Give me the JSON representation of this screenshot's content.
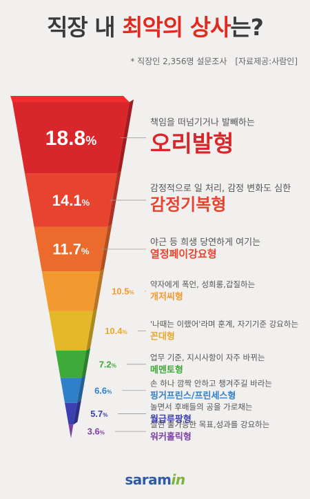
{
  "title": {
    "part1": "직장 내 ",
    "part2": "최악의 상사",
    "part3": "는?"
  },
  "subtitle": {
    "survey": "* 직장인 2,356명 설문조사",
    "source": "[자료제공:사람인]"
  },
  "logo": {
    "main": "saram",
    "accent": "in"
  },
  "chart_data": {
    "type": "bar",
    "title": "직장 내 최악의 상사는?",
    "unit": "%",
    "categories": [
      "오리발형",
      "감정기복형",
      "열정페이강요형",
      "개저씨형",
      "꼰대형",
      "메멘토형",
      "핑거프린스/프린세스형",
      "월급루팡형",
      "워커홀릭형"
    ],
    "descriptions": [
      "책임을 떠넘기거나 발빼하는",
      "감정적으로 일 처리, 감정 변화도 심한",
      "야근 등 희생 당연하게 여기는",
      "약자에게 폭언, 성희롱,갑질하는",
      "'나때는 이랬어'라며 훈계, 자기기준 강요하는",
      "업무 기준, 지시사항이 자주 바뀌는",
      "손 하나 깜짝 안하고 챙겨주길 바라는",
      "놀면서 후배들의 공을 가로채는",
      "실현 불가능한 목표,성과를 강요하는"
    ],
    "values": [
      18.8,
      14.1,
      11.7,
      10.5,
      10.4,
      7.2,
      6.6,
      5.7,
      3.6
    ],
    "value_labels": [
      "18.8",
      "14.1",
      "11.7",
      "10.5",
      "10.4",
      "7.2",
      "6.6",
      "5.7",
      "3.6"
    ],
    "colors": [
      "#d9262a",
      "#e8432e",
      "#ec6b2c",
      "#f29a30",
      "#e5b82a",
      "#3daa3a",
      "#2f7fc9",
      "#3b3fb0",
      "#7a3fa6"
    ],
    "label_colors": [
      "#d9262a",
      "#e8432e",
      "#e8432e",
      "#f29a30",
      "#e5a92a",
      "#3daa3a",
      "#2f7fc9",
      "#3b3fb0",
      "#7a3fa6"
    ]
  }
}
